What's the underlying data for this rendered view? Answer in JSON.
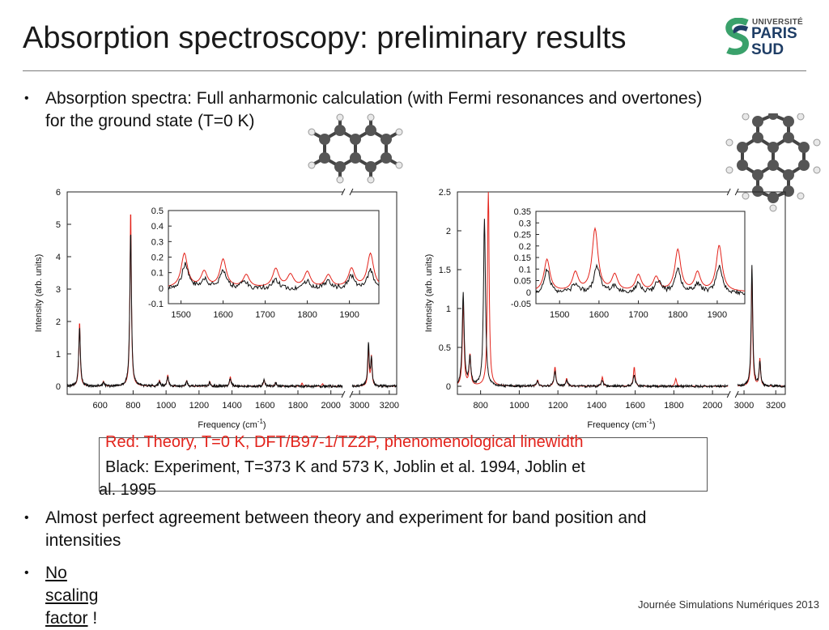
{
  "slide": {
    "title": "Absorption spectroscopy: preliminary results",
    "logo": {
      "small": "UNIVERSITÉ",
      "line1": "PARIS",
      "line2": "SUD"
    },
    "bullets": [
      {
        "text_line1": "Absorption spectra: Full anharmonic calculation (with Fermi resonances and overtones)",
        "text_line2": "for the ground state (T=0 K)"
      },
      {
        "text_line1": "Almost perfect agreement between theory and experiment for band position and",
        "text_line2": "intensities"
      },
      {
        "link": "No scaling factor",
        "suffix": " !"
      }
    ],
    "bullet_symbol": "•",
    "legend": {
      "red": "Red:  Theory, T=0 K, DFT/B97-1/TZ2P, phenomenological linewidth",
      "black_line1": "Black: Experiment, T=373 K and 573 K, Joblin et al. 1994, Joblin et",
      "black_line2": "al. 1995"
    },
    "footer": "Journée Simulations Numériques 2013",
    "colors": {
      "theory": "#e3231b",
      "experiment": "#111111",
      "logo_blue": "#1f3e66",
      "logo_green": "#3aa16b"
    }
  },
  "chart_data": [
    {
      "type": "line",
      "xlabel": "Frequency (cm-1)",
      "ylabel": "Intensity (arb. units)",
      "broken_x_axis": true,
      "x_ticks": [
        "600",
        "800",
        "1000",
        "1200",
        "1400",
        "1600",
        "1800",
        "2000",
        "3000",
        "3200"
      ],
      "y_ticks": [
        "0",
        "1",
        "2",
        "3",
        "4",
        "5",
        "6"
      ],
      "ylim": [
        0,
        6
      ],
      "series": [
        {
          "color": "theory",
          "peaks": [
            [
              475,
              2.0
            ],
            [
              620,
              0.15
            ],
            [
              785,
              5.5
            ],
            [
              960,
              0.18
            ],
            [
              1010,
              0.35
            ],
            [
              1125,
              0.18
            ],
            [
              1265,
              0.15
            ],
            [
              1390,
              0.3
            ],
            [
              1595,
              0.2
            ],
            [
              1665,
              0.12
            ],
            [
              1825,
              0.1
            ],
            [
              1950,
              0.08
            ],
            [
              3060,
              1.2
            ],
            [
              3080,
              0.9
            ]
          ]
        },
        {
          "color": "experiment",
          "peaks": [
            [
              475,
              1.8
            ],
            [
              620,
              0.12
            ],
            [
              785,
              4.8
            ],
            [
              960,
              0.15
            ],
            [
              1010,
              0.3
            ],
            [
              1125,
              0.15
            ],
            [
              1265,
              0.12
            ],
            [
              1390,
              0.25
            ],
            [
              1595,
              0.2
            ],
            [
              1665,
              0.1
            ],
            [
              3060,
              1.3
            ],
            [
              3080,
              0.8
            ]
          ]
        }
      ],
      "inset": {
        "x_ticks": [
          "1500",
          "1600",
          "1700",
          "1800",
          "1900"
        ],
        "y_ticks": [
          "-0.1",
          "0",
          "0.1",
          "0.2",
          "0.3",
          "0.4",
          "0.5"
        ],
        "ylim": [
          -0.1,
          0.5
        ]
      }
    },
    {
      "type": "line",
      "xlabel": "Frequency (cm-1)",
      "ylabel": "Intensity (arb. units)",
      "broken_x_axis": true,
      "x_ticks": [
        "800",
        "1000",
        "1200",
        "1400",
        "1600",
        "1800",
        "2000",
        "3000",
        "3200"
      ],
      "y_ticks": [
        "0",
        "0.5",
        "1",
        "1.5",
        "2",
        "2.5"
      ],
      "ylim": [
        0,
        2.5
      ],
      "series": [
        {
          "color": "theory",
          "peaks": [
            [
              710,
              1.1
            ],
            [
              745,
              0.4
            ],
            [
              840,
              2.6
            ],
            [
              1095,
              0.08
            ],
            [
              1185,
              0.25
            ],
            [
              1245,
              0.1
            ],
            [
              1430,
              0.12
            ],
            [
              1595,
              0.25
            ],
            [
              1810,
              0.1
            ],
            [
              3050,
              1.5
            ],
            [
              3100,
              0.35
            ]
          ]
        },
        {
          "color": "experiment",
          "peaks": [
            [
              710,
              1.2
            ],
            [
              745,
              0.35
            ],
            [
              820,
              2.15
            ],
            [
              1095,
              0.06
            ],
            [
              1185,
              0.2
            ],
            [
              1245,
              0.08
            ],
            [
              1430,
              0.08
            ],
            [
              1595,
              0.15
            ],
            [
              3050,
              1.55
            ],
            [
              3100,
              0.3
            ]
          ]
        }
      ],
      "inset": {
        "x_ticks": [
          "1500",
          "1600",
          "1700",
          "1800",
          "1900"
        ],
        "y_ticks": [
          "-0.05",
          "0",
          "0.05",
          "0.1",
          "0.15",
          "0.2",
          "0.25",
          "0.3",
          "0.35"
        ],
        "ylim": [
          -0.05,
          0.35
        ]
      }
    }
  ]
}
